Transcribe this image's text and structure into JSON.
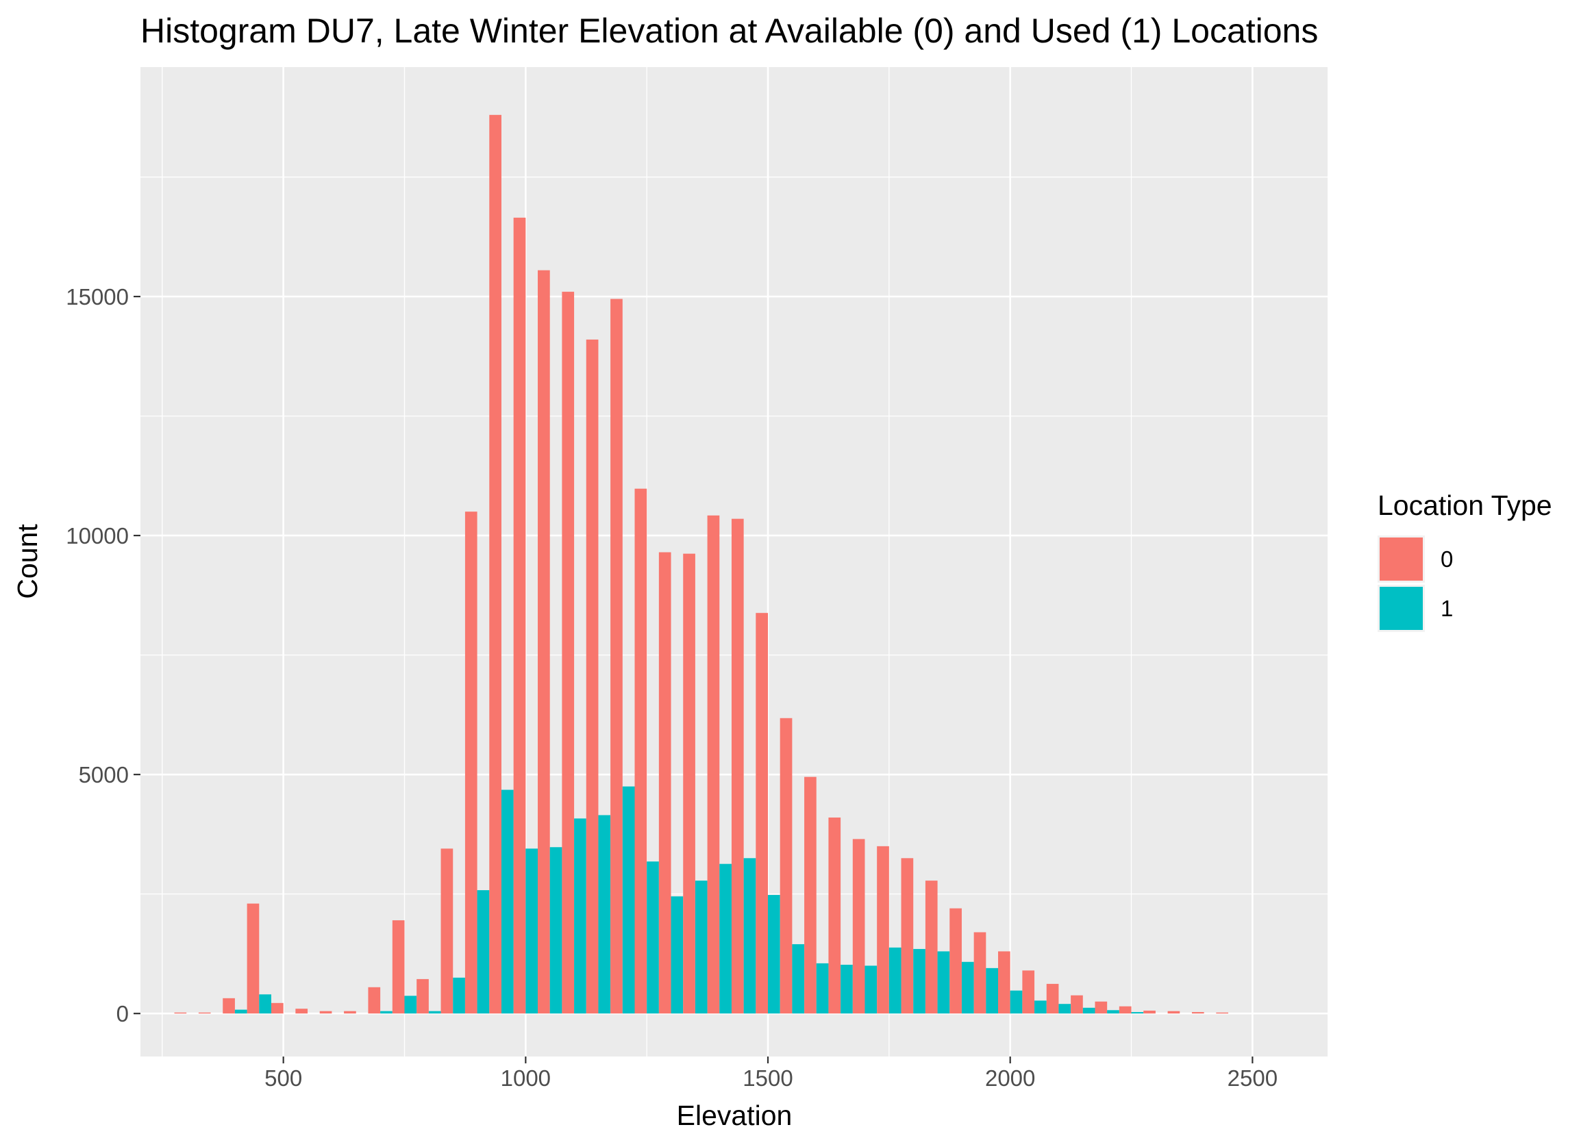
{
  "chart_data": {
    "type": "bar",
    "title": "Histogram DU7, Late Winter Elevation at Available (0) and Used (1) Locations",
    "xlabel": "Elevation",
    "ylabel": "Count",
    "xlim": [
      205,
      2655
    ],
    "ylim": [
      -900,
      19800
    ],
    "x_ticks": [
      500,
      1000,
      1500,
      2000,
      2500
    ],
    "x_tick_labels": [
      "500",
      "1000",
      "1500",
      "2000",
      "2500"
    ],
    "y_ticks": [
      0,
      5000,
      10000,
      15000
    ],
    "y_tick_labels": [
      "0",
      "5000",
      "10000",
      "15000"
    ],
    "bin_width": 50,
    "grid": true,
    "legend": {
      "title": "Location Type",
      "position": "right",
      "entries": [
        "0",
        "1"
      ]
    },
    "bin_centers": [
      300,
      350,
      400,
      450,
      500,
      550,
      600,
      650,
      700,
      750,
      800,
      850,
      900,
      950,
      1000,
      1050,
      1100,
      1150,
      1200,
      1250,
      1300,
      1350,
      1400,
      1450,
      1500,
      1550,
      1600,
      1650,
      1700,
      1750,
      1800,
      1850,
      1900,
      1950,
      2000,
      2050,
      2100,
      2150,
      2200,
      2250,
      2300,
      2350,
      2400,
      2450
    ],
    "series": [
      {
        "name": "0",
        "color": "#F8766D",
        "values": [
          20,
          20,
          320,
          2300,
          220,
          100,
          50,
          50,
          550,
          1950,
          720,
          3450,
          10500,
          18800,
          16650,
          15550,
          15100,
          14100,
          14950,
          10980,
          9650,
          9620,
          10420,
          10350,
          8380,
          6180,
          4950,
          4100,
          3650,
          3500,
          3250,
          2780,
          2200,
          1700,
          1300,
          900,
          620,
          380,
          250,
          150,
          60,
          50,
          30,
          20
        ]
      },
      {
        "name": "1",
        "color": "#00BFC4",
        "values": [
          0,
          0,
          80,
          400,
          0,
          0,
          0,
          0,
          50,
          370,
          50,
          750,
          2580,
          4680,
          3450,
          3480,
          4080,
          4150,
          4750,
          3180,
          2450,
          2780,
          3130,
          3250,
          2480,
          1450,
          1050,
          1020,
          1000,
          1380,
          1350,
          1300,
          1080,
          950,
          480,
          270,
          200,
          120,
          70,
          30,
          0,
          0,
          0,
          0
        ]
      }
    ]
  }
}
